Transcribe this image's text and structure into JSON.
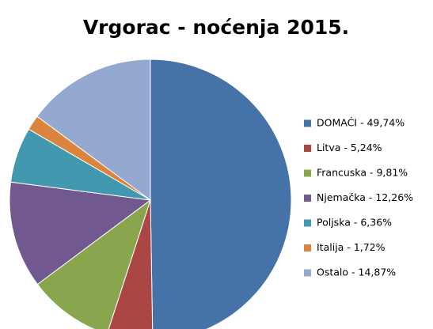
{
  "chart_data": {
    "type": "pie",
    "title": "Vrgorac - noćenja 2015.",
    "categories": [
      "DOMAĆI - 49,74%",
      "Litva - 5,24%",
      "Francuska - 9,81%",
      "Njemačka - 12,26%",
      "Poljska - 6,36%",
      "Italija - 1,72%",
      "Ostalo - 14,87%"
    ],
    "values": [
      49.74,
      5.24,
      9.81,
      12.26,
      6.36,
      1.72,
      14.87
    ],
    "colors": [
      "#4572a7",
      "#aa4643",
      "#89a54e",
      "#71588f",
      "#4198af",
      "#db843d",
      "#93a9cf"
    ],
    "legend": "right"
  }
}
